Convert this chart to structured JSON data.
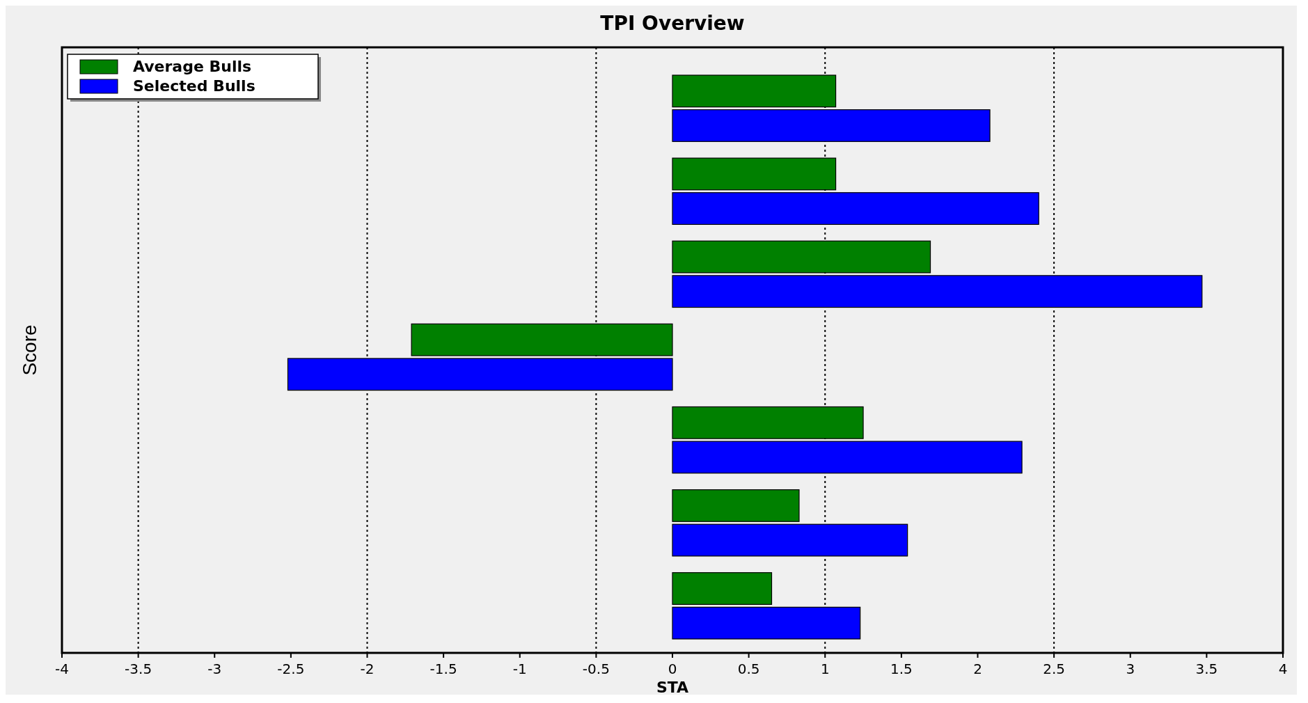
{
  "chart_data": {
    "type": "bar",
    "orientation": "horizontal",
    "title": "TPI Overview",
    "xlabel": "STA",
    "ylabel": "Score",
    "categories": [
      null,
      null,
      null,
      null,
      null,
      null,
      null
    ],
    "series": [
      {
        "name": "Average Bulls",
        "color": "#008000",
        "values": [
          1.07,
          1.07,
          1.69,
          -1.71,
          1.25,
          0.83,
          0.65
        ]
      },
      {
        "name": "Selected Bulls",
        "color": "#0000ff",
        "values": [
          2.08,
          2.4,
          3.47,
          -2.52,
          2.29,
          1.54,
          1.23
        ]
      }
    ],
    "xlim": [
      -4,
      4
    ],
    "xticks": [
      -4,
      -3.5,
      -3,
      -2.5,
      -2,
      -1.5,
      -1,
      -0.5,
      0,
      0.5,
      1,
      1.5,
      2,
      2.5,
      3,
      3.5,
      4
    ],
    "ref_lines": [
      {
        "axis": "x",
        "value": -3.5,
        "line_style": "dotted"
      },
      {
        "axis": "x",
        "value": -2,
        "line_style": "dotted"
      },
      {
        "axis": "x",
        "value": -0.5,
        "line_style": "dotted"
      },
      {
        "axis": "x",
        "value": 1,
        "line_style": "dotted"
      },
      {
        "axis": "x",
        "value": 2.5,
        "line_style": "dotted"
      }
    ],
    "tick_labels": "x",
    "legend": "top left"
  }
}
